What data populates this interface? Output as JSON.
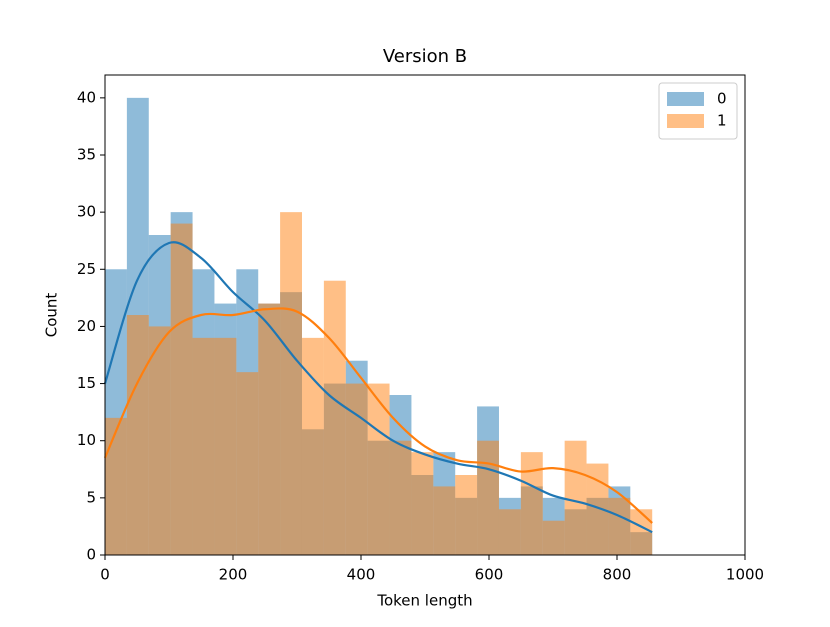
{
  "chart_data": {
    "type": "histogram",
    "title": "Version B",
    "x_label": "Token length",
    "y_label": "Count",
    "bins": [
      0,
      34.2,
      68.4,
      102.6,
      136.8,
      171,
      205.2,
      239.4,
      273.6,
      307.8,
      342,
      376.2,
      410.4,
      444.6,
      478.8,
      513,
      547.2,
      581.4,
      615.6,
      649.8,
      684,
      718.2,
      752.4,
      786.6,
      820.8,
      855
    ],
    "series": [
      {
        "name": "0",
        "color": "#1f77b4",
        "values": [
          25,
          40,
          28,
          30,
          25,
          22,
          25,
          22,
          23,
          11,
          15,
          17,
          10,
          14,
          7,
          9,
          5,
          13,
          5,
          6,
          5,
          4,
          5,
          6,
          2
        ],
        "kde": [
          15,
          24,
          27.3,
          26,
          23,
          20.5,
          17,
          14,
          12,
          10,
          8.8,
          8,
          7.5,
          6.5,
          5.2,
          4.5,
          3.5,
          2
        ]
      },
      {
        "name": "1",
        "color": "#ff7f0e",
        "values": [
          12,
          21,
          20,
          29,
          19,
          19,
          16,
          22,
          30,
          19,
          24,
          15,
          15,
          10,
          9,
          6,
          7,
          10,
          4,
          9,
          3,
          10,
          8,
          5,
          4
        ],
        "kde": [
          8.5,
          15,
          19.5,
          21,
          21,
          21.5,
          21.3,
          19,
          15.5,
          12,
          9.5,
          8.3,
          8,
          7.3,
          7.6,
          7,
          5.5,
          2.8
        ]
      }
    ],
    "kde_x": [
      0,
      50,
      100,
      150,
      200,
      250,
      300,
      350,
      400,
      450,
      500,
      550,
      600,
      650,
      700,
      750,
      800,
      855
    ],
    "xlim": [
      0,
      1000
    ],
    "xticks": [
      0,
      200,
      400,
      600,
      800,
      1000
    ],
    "ylim": [
      0,
      42
    ],
    "yticks": [
      0,
      5,
      10,
      15,
      20,
      25,
      30,
      35,
      40
    ],
    "legend": "upper right",
    "bar_opacity": 0.5
  }
}
